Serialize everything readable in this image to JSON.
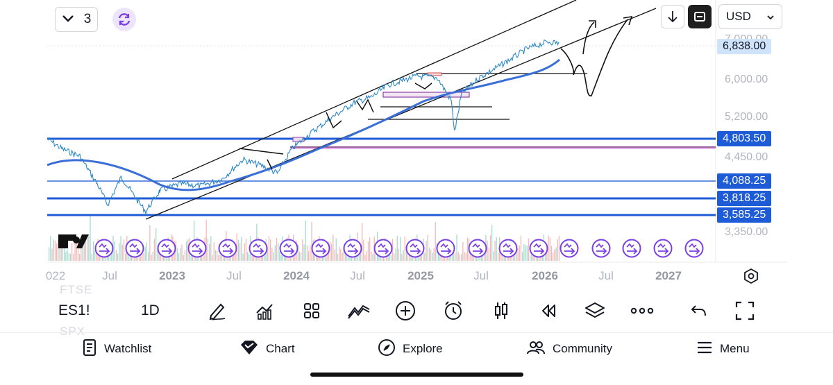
{
  "header": {
    "interval_value": "3",
    "currency": "USD"
  },
  "price_axis": {
    "ticks": [
      "7,000.00",
      "6,000.00",
      "5,200.00",
      "4,450.00",
      "3,350.00"
    ],
    "labels": [
      {
        "text": "6,838.00",
        "style": "current",
        "color": "#cfe3fb",
        "text_color": "#131722"
      },
      {
        "text": "4,803.50",
        "style": "line",
        "color": "#1e5bd6",
        "text_color": "#ffffff"
      },
      {
        "text": "4,088.25",
        "style": "line",
        "color": "#1e5bd6",
        "text_color": "#ffffff"
      },
      {
        "text": "3,818.25",
        "style": "line",
        "color": "#1e5bd6",
        "text_color": "#ffffff"
      },
      {
        "text": "3,585.25",
        "style": "line",
        "color": "#1e5bd6",
        "text_color": "#ffffff"
      }
    ]
  },
  "time_axis": {
    "ticks": [
      {
        "text": "022",
        "bold": false
      },
      {
        "text": "Jul",
        "bold": false
      },
      {
        "text": "2023",
        "bold": true
      },
      {
        "text": "Jul",
        "bold": false
      },
      {
        "text": "2024",
        "bold": true
      },
      {
        "text": "Jul",
        "bold": false
      },
      {
        "text": "2025",
        "bold": true
      },
      {
        "text": "Jul",
        "bold": false
      },
      {
        "text": "2026",
        "bold": true
      },
      {
        "text": "Jul",
        "bold": false
      },
      {
        "text": "2027",
        "bold": true
      }
    ]
  },
  "toolbar": {
    "symbol": "ES1!",
    "interval": "1D",
    "ghost_top": "FTSE",
    "ghost_bottom": "SPX",
    "tools": [
      "pencil-icon",
      "indicators-icon",
      "grid-icon",
      "compare-icon",
      "add-icon",
      "alert-icon",
      "candles-icon",
      "replay-icon",
      "layers-icon",
      "more-icon",
      "undo-icon",
      "fullscreen-icon"
    ]
  },
  "nav": {
    "watchlist": "Watchlist",
    "chart": "Chart",
    "explore": "Explore",
    "community": "Community",
    "menu": "Menu"
  },
  "colors": {
    "accent": "#7b3fe4",
    "line_blue": "#1e5bd6",
    "ma_blue": "#3a6fd8",
    "price_line": "#2b88c8"
  }
}
